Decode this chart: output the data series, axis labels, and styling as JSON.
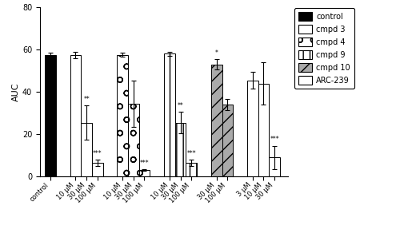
{
  "ylabel": "AUC",
  "ylim": [
    0,
    80
  ],
  "yticks": [
    0,
    20,
    40,
    60,
    80
  ],
  "background_color": "#ffffff",
  "groups": [
    {
      "label": "control",
      "hatch": "",
      "facecolor": "#000000",
      "edgecolor": "#000000",
      "bars": [
        {
          "x_label": "control",
          "value": 57.5,
          "sem": 1.0,
          "sig": ""
        }
      ]
    },
    {
      "label": "cmpd 3",
      "hatch": "=",
      "facecolor": "#ffffff",
      "edgecolor": "#000000",
      "bars": [
        {
          "x_label": "10 μM",
          "value": 57.5,
          "sem": 1.5,
          "sig": ""
        },
        {
          "x_label": "30 μM",
          "value": 25.5,
          "sem": 8.0,
          "sig": "**"
        },
        {
          "x_label": "100 μM",
          "value": 6.5,
          "sem": 1.5,
          "sig": "***"
        }
      ]
    },
    {
      "label": "cmpd 4",
      "hatch": "o",
      "facecolor": "#ffffff",
      "edgecolor": "#000000",
      "bars": [
        {
          "x_label": "10 μM",
          "value": 57.5,
          "sem": 1.0,
          "sig": ""
        },
        {
          "x_label": "30 μM",
          "value": 34.5,
          "sem": 11.0,
          "sig": ""
        },
        {
          "x_label": "100 μM",
          "value": 3.0,
          "sem": 0.5,
          "sig": "***"
        }
      ]
    },
    {
      "label": "cmpd 9",
      "hatch": "||",
      "facecolor": "#ffffff",
      "edgecolor": "#000000",
      "bars": [
        {
          "x_label": "10 μM",
          "value": 58.0,
          "sem": 1.0,
          "sig": ""
        },
        {
          "x_label": "30 μM",
          "value": 25.5,
          "sem": 5.0,
          "sig": "**"
        },
        {
          "x_label": "100 μM",
          "value": 6.5,
          "sem": 1.5,
          "sig": "***"
        }
      ]
    },
    {
      "label": "cmpd 10",
      "hatch": "//",
      "facecolor": "#aaaaaa",
      "edgecolor": "#000000",
      "bars": [
        {
          "x_label": "30 μM",
          "value": 53.0,
          "sem": 2.5,
          "sig": "*"
        },
        {
          "x_label": "100 μM",
          "value": 34.0,
          "sem": 2.5,
          "sig": ""
        }
      ]
    },
    {
      "label": "ARC-239",
      "hatch": "",
      "facecolor": "#ffffff",
      "edgecolor": "#000000",
      "bars": [
        {
          "x_label": "3 μM",
          "value": 45.5,
          "sem": 4.0,
          "sig": ""
        },
        {
          "x_label": "10 μM",
          "value": 44.0,
          "sem": 10.0,
          "sig": ""
        },
        {
          "x_label": "30 μM",
          "value": 9.0,
          "sem": 5.5,
          "sig": "***"
        }
      ]
    }
  ]
}
